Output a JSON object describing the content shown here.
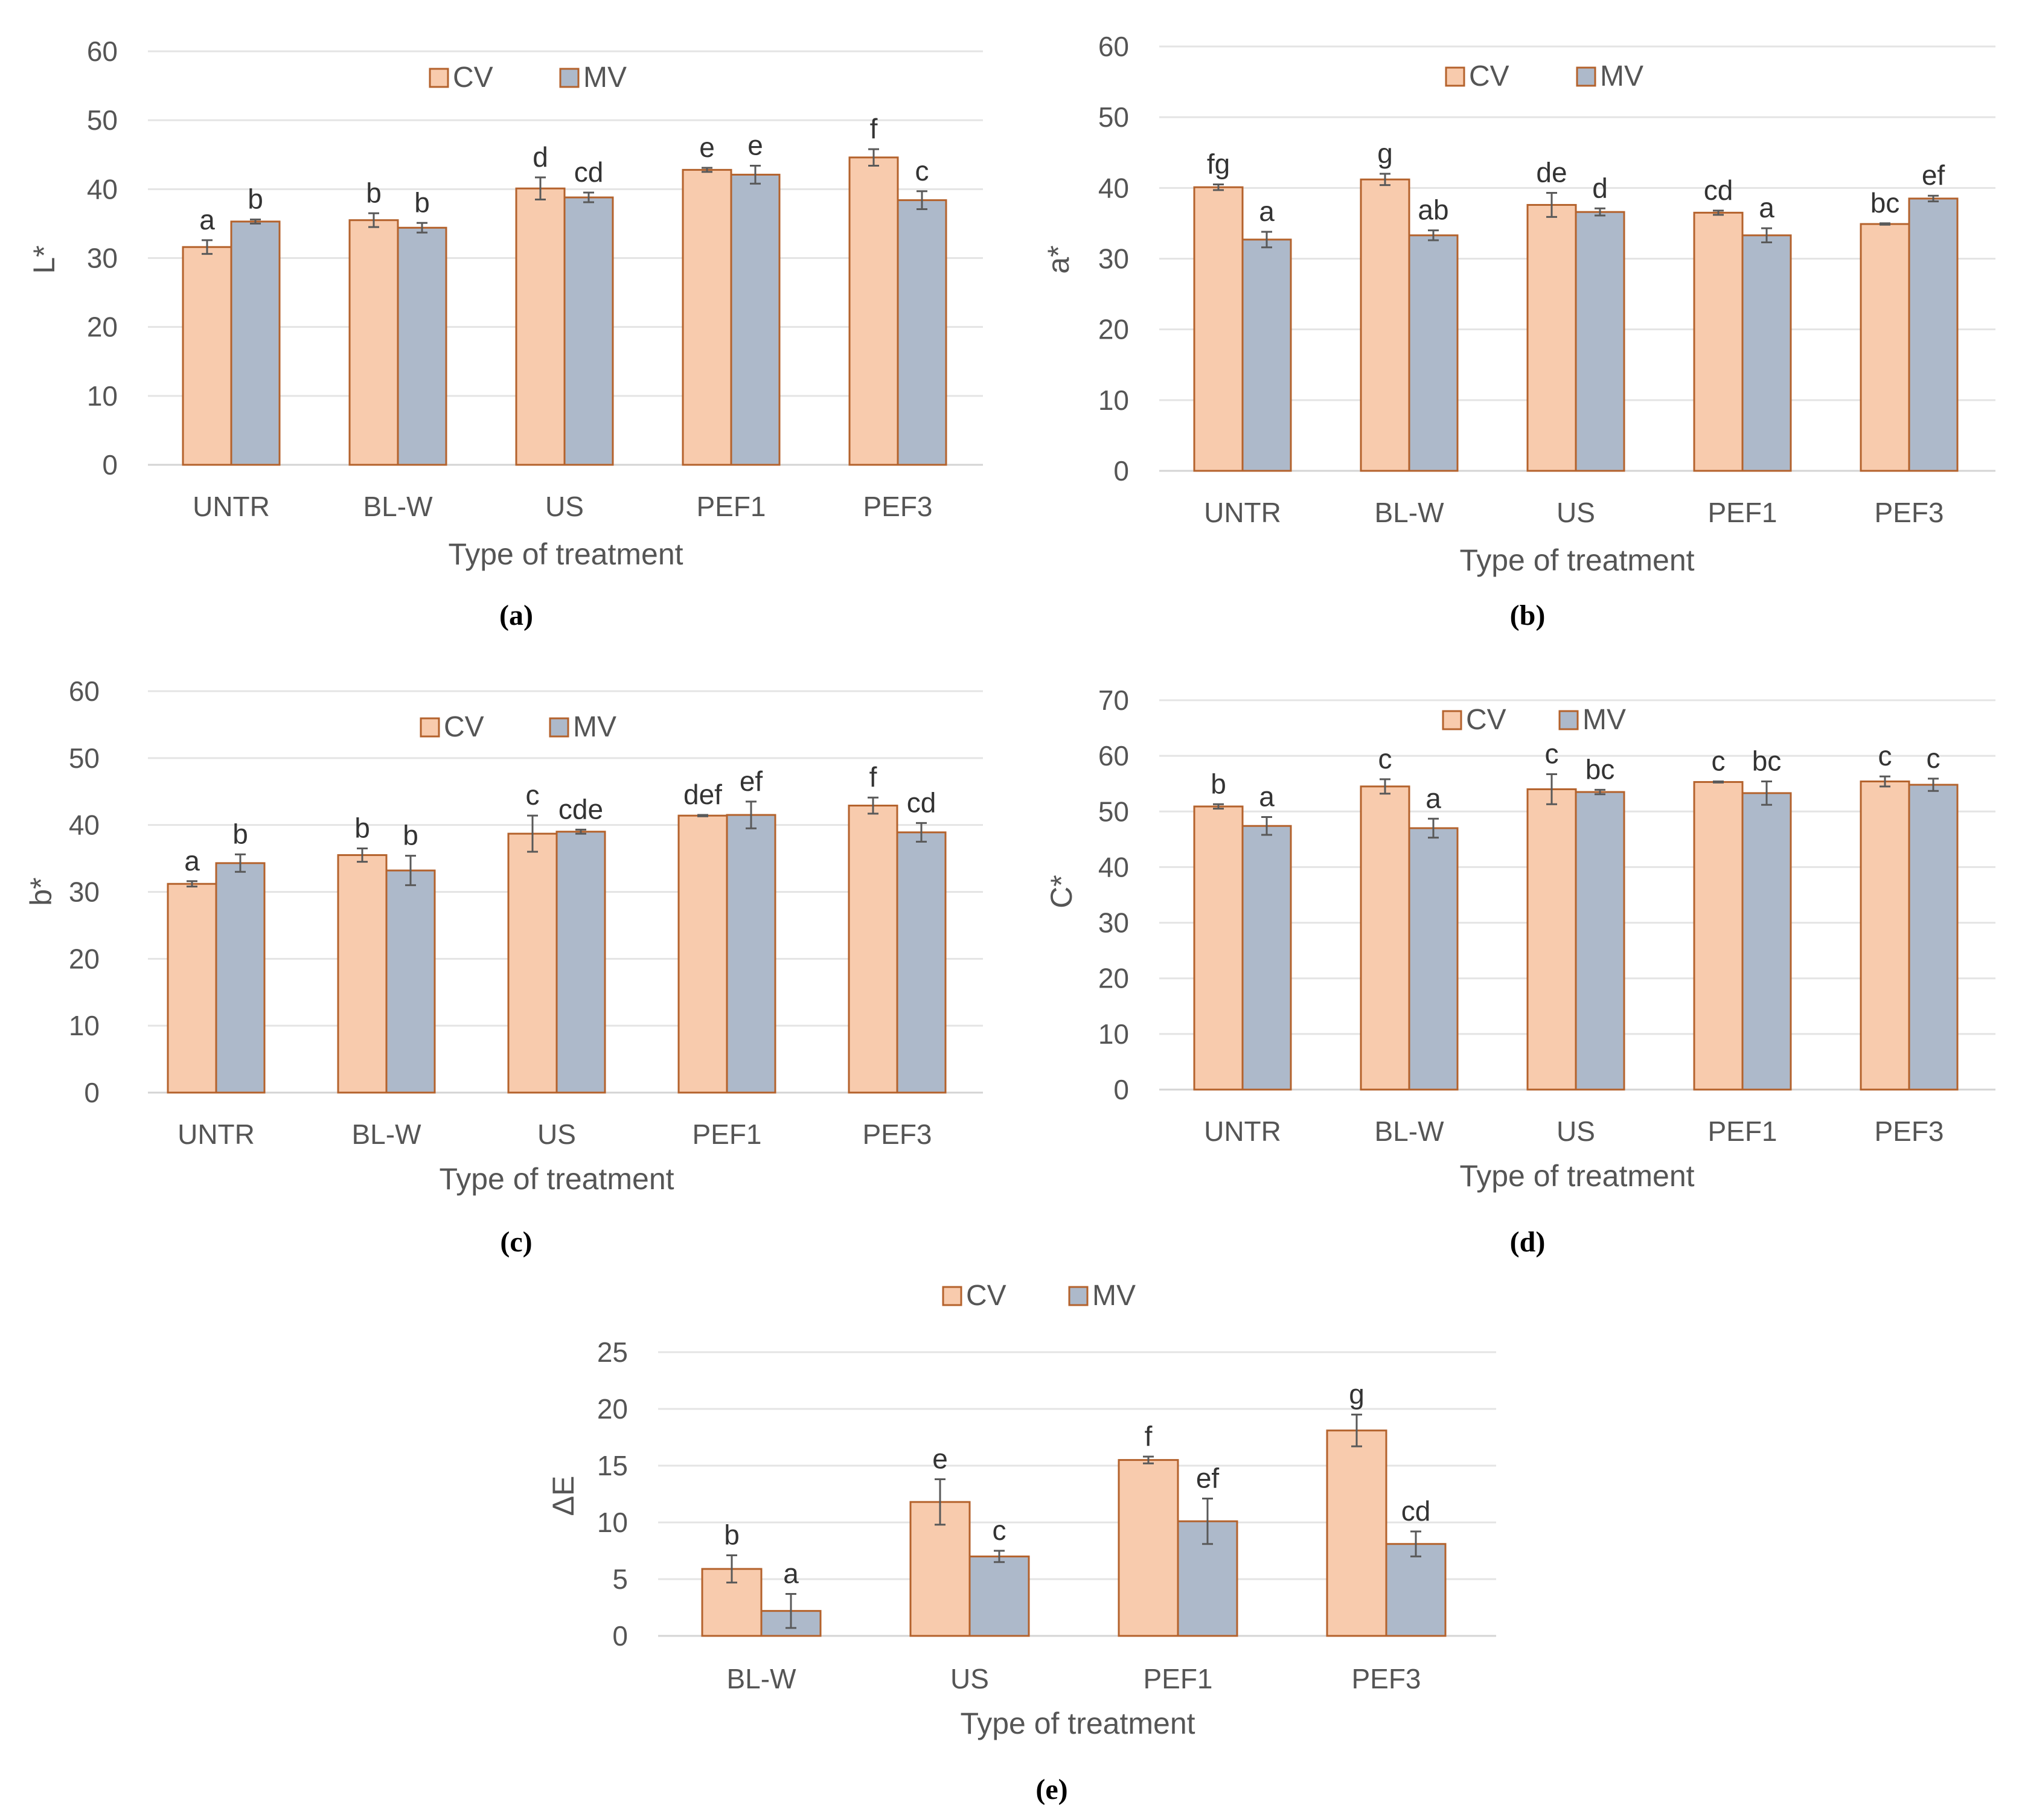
{
  "chart_data": [
    {
      "id": "a",
      "type": "bar",
      "panel_label": "(a)",
      "xlabel": "Type of treatment",
      "ylabel": "L*",
      "ylim": [
        0,
        60
      ],
      "yticks": [
        "0",
        "10",
        "20",
        "30",
        "40",
        "50",
        "60"
      ],
      "categories": [
        "UNTR",
        "BL-W",
        "US",
        "PEF1",
        "PEF3"
      ],
      "series": [
        {
          "name": "CV",
          "values": [
            31.6,
            35.5,
            40.1,
            42.8,
            44.6
          ],
          "errors": [
            1.0,
            1.0,
            1.6,
            0.3,
            1.2
          ],
          "letters": [
            "a",
            "b",
            "d",
            "e",
            "f"
          ]
        },
        {
          "name": "MV",
          "values": [
            35.3,
            34.4,
            38.8,
            42.1,
            38.4
          ],
          "errors": [
            0.3,
            0.7,
            0.7,
            1.3,
            1.3
          ],
          "letters": [
            "b",
            "b",
            "cd",
            "e",
            "c"
          ]
        }
      ]
    },
    {
      "id": "b",
      "type": "bar",
      "panel_label": "(b)",
      "xlabel": "Type of treatment",
      "ylabel": "a*",
      "ylim": [
        0,
        60
      ],
      "yticks": [
        "0",
        "10",
        "20",
        "30",
        "40",
        "50",
        "60"
      ],
      "categories": [
        "UNTR",
        "BL-W",
        "US",
        "PEF1",
        "PEF3"
      ],
      "series": [
        {
          "name": "CV",
          "values": [
            40.1,
            41.2,
            37.6,
            36.5,
            34.9
          ],
          "errors": [
            0.4,
            0.8,
            1.7,
            0.3,
            0.1
          ],
          "letters": [
            "fg",
            "g",
            "de",
            "cd",
            "bc"
          ]
        },
        {
          "name": "MV",
          "values": [
            32.7,
            33.3,
            36.6,
            33.3,
            38.5
          ],
          "errors": [
            1.1,
            0.7,
            0.5,
            1.0,
            0.4
          ],
          "letters": [
            "a",
            "ab",
            "d",
            "a",
            "ef"
          ]
        }
      ]
    },
    {
      "id": "c",
      "type": "bar",
      "panel_label": "(c)",
      "xlabel": "Type of treatment",
      "ylabel": "b*",
      "ylim": [
        0,
        60
      ],
      "yticks": [
        "0",
        "10",
        "20",
        "30",
        "40",
        "50",
        "60"
      ],
      "categories": [
        "UNTR",
        "BL-W",
        "US",
        "PEF1",
        "PEF3"
      ],
      "series": [
        {
          "name": "CV",
          "values": [
            31.2,
            35.5,
            38.7,
            41.4,
            42.9
          ],
          "errors": [
            0.4,
            1.0,
            2.7,
            0.1,
            1.2
          ],
          "letters": [
            "a",
            "b",
            "c",
            "def",
            "f"
          ]
        },
        {
          "name": "MV",
          "values": [
            34.3,
            33.2,
            39.0,
            41.5,
            38.9
          ],
          "errors": [
            1.3,
            2.2,
            0.3,
            2.0,
            1.4
          ],
          "letters": [
            "b",
            "b",
            "cde",
            "ef",
            "cd"
          ]
        }
      ]
    },
    {
      "id": "d",
      "type": "bar",
      "panel_label": "(d)",
      "xlabel": "Type of treatment",
      "ylabel": "C*",
      "ylim": [
        0,
        70
      ],
      "yticks": [
        "0",
        "10",
        "20",
        "30",
        "40",
        "50",
        "60",
        "70"
      ],
      "categories": [
        "UNTR",
        "BL-W",
        "US",
        "PEF1",
        "PEF3"
      ],
      "series": [
        {
          "name": "CV",
          "values": [
            50.9,
            54.5,
            54.0,
            55.3,
            55.4
          ],
          "errors": [
            0.4,
            1.3,
            2.7,
            0.1,
            0.9
          ],
          "letters": [
            "b",
            "c",
            "c",
            "c",
            "c"
          ]
        },
        {
          "name": "MV",
          "values": [
            47.4,
            47.0,
            53.5,
            53.3,
            54.8
          ],
          "errors": [
            1.6,
            1.7,
            0.4,
            2.1,
            1.1
          ],
          "letters": [
            "a",
            "a",
            "bc",
            "bc",
            "c"
          ]
        }
      ]
    },
    {
      "id": "e",
      "type": "bar",
      "panel_label": "(e)",
      "xlabel": "Type of treatment",
      "ylabel": "ΔE",
      "ylim": [
        0,
        25
      ],
      "yticks": [
        "0",
        "5",
        "10",
        "15",
        "20",
        "25"
      ],
      "categories": [
        "BL-W",
        "US",
        "PEF1",
        "PEF3"
      ],
      "series": [
        {
          "name": "CV",
          "values": [
            5.9,
            11.8,
            15.5,
            18.1
          ],
          "errors": [
            1.2,
            2.0,
            0.3,
            1.4
          ],
          "letters": [
            "b",
            "e",
            "f",
            "g"
          ]
        },
        {
          "name": "MV",
          "values": [
            2.2,
            7.0,
            10.1,
            8.1
          ],
          "errors": [
            1.5,
            0.5,
            2.0,
            1.1
          ],
          "letters": [
            "a",
            "c",
            "ef",
            "cd"
          ]
        }
      ]
    }
  ],
  "colors": {
    "cv_fill": "#f8cbad",
    "cv_stroke": "#b4622c",
    "mv_fill": "#adb9ca",
    "mv_stroke": "#b4622c"
  }
}
